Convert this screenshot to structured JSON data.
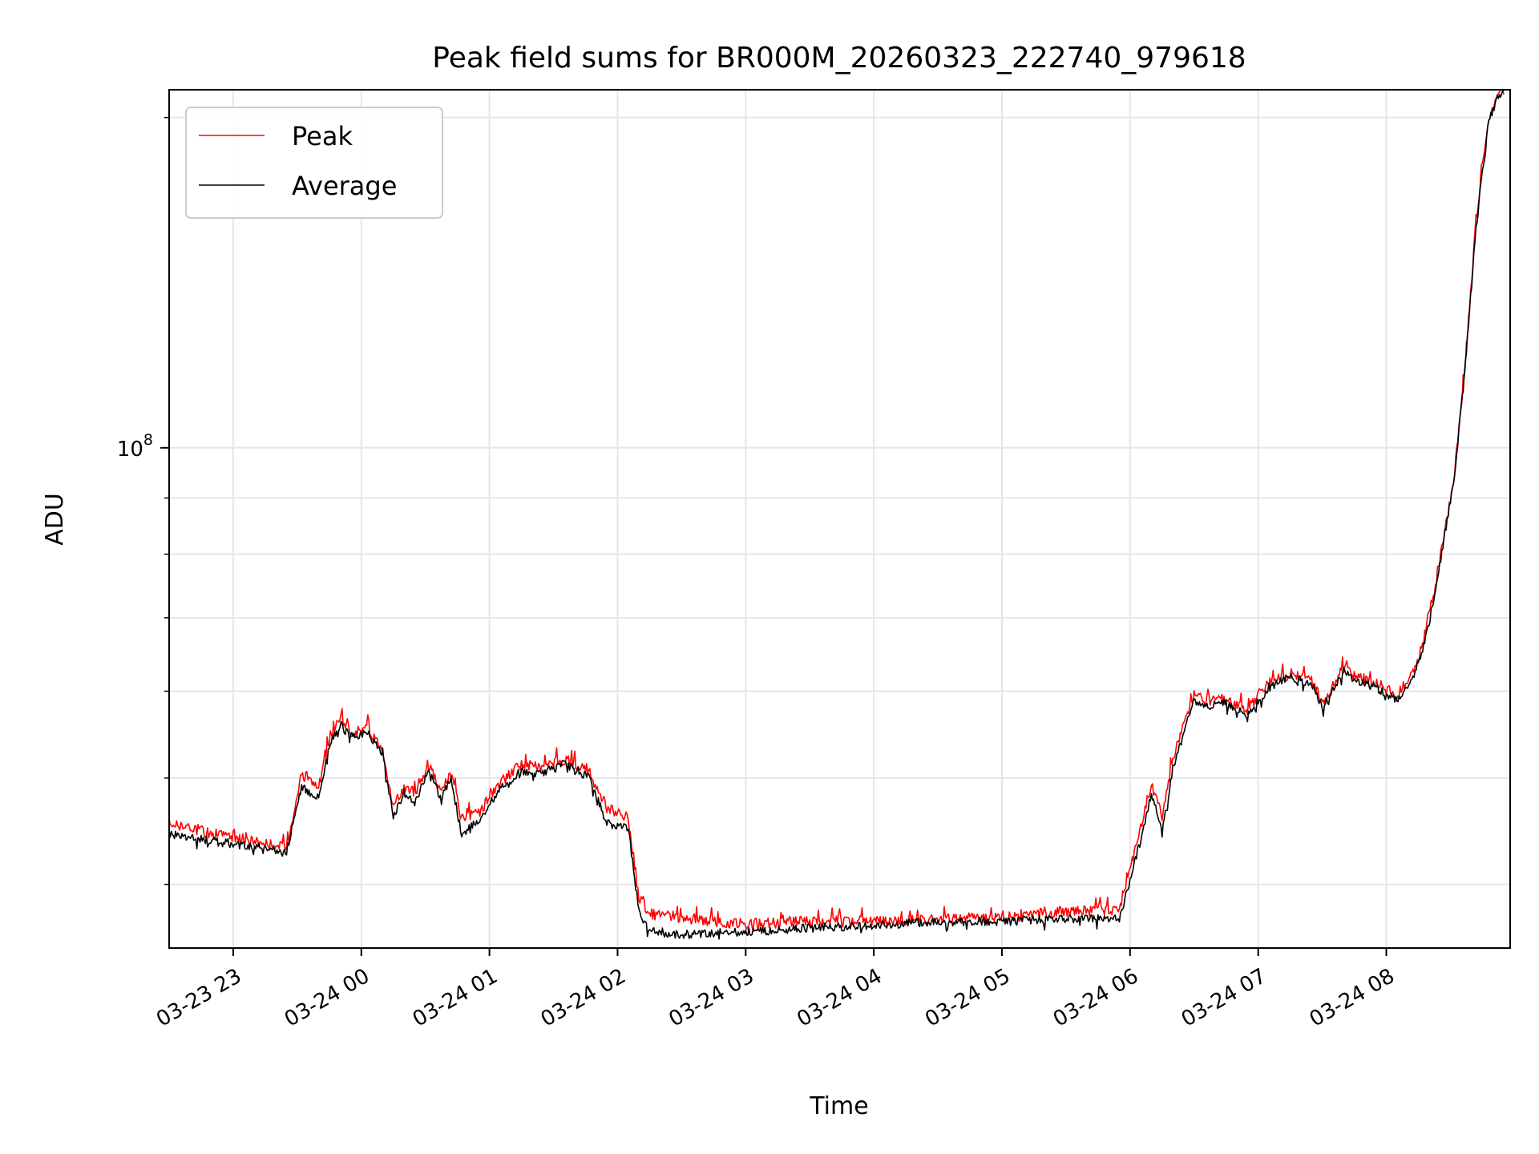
{
  "chart_data": {
    "type": "line",
    "title": "Peak field sums for BR000M_20260323_222740_979618",
    "xlabel": "Time",
    "ylabel": "ADU",
    "yscale": "log",
    "xlim": [
      "2026-03-23 22:30",
      "2026-03-24 08:58"
    ],
    "ylim": [
      35000000,
      212000000
    ],
    "x_ticks": [
      "03-23 23",
      "03-24 00",
      "03-24 01",
      "03-24 02",
      "03-24 03",
      "03-24 04",
      "03-24 05",
      "03-24 06",
      "03-24 07",
      "03-24 08"
    ],
    "y_major_tick": {
      "base": "10",
      "exponent": "8"
    },
    "grid": true,
    "legend_position": "upper-left",
    "series": [
      {
        "name": "Peak",
        "color": "#ff0000",
        "x": [
          "2026-03-23 22:30",
          "2026-03-23 22:50",
          "2026-03-23 23:10",
          "2026-03-23 23:25",
          "2026-03-23 23:32",
          "2026-03-23 23:40",
          "2026-03-23 23:45",
          "2026-03-23 23:50",
          "2026-03-23 23:55",
          "2026-03-24 00:03",
          "2026-03-24 00:10",
          "2026-03-24 00:15",
          "2026-03-24 00:20",
          "2026-03-24 00:25",
          "2026-03-24 00:32",
          "2026-03-24 00:37",
          "2026-03-24 00:42",
          "2026-03-24 00:47",
          "2026-03-24 00:55",
          "2026-03-24 01:05",
          "2026-03-24 01:15",
          "2026-03-24 01:25",
          "2026-03-24 01:35",
          "2026-03-24 01:40",
          "2026-03-24 01:47",
          "2026-03-24 01:55",
          "2026-03-24 02:05",
          "2026-03-24 02:10",
          "2026-03-24 02:15",
          "2026-03-24 02:30",
          "2026-03-24 03:00",
          "2026-03-24 03:30",
          "2026-03-24 04:00",
          "2026-03-24 04:30",
          "2026-03-24 05:00",
          "2026-03-24 05:30",
          "2026-03-24 05:55",
          "2026-03-24 06:05",
          "2026-03-24 06:10",
          "2026-03-24 06:15",
          "2026-03-24 06:20",
          "2026-03-24 06:30",
          "2026-03-24 06:35",
          "2026-03-24 06:45",
          "2026-03-24 06:55",
          "2026-03-24 07:05",
          "2026-03-24 07:15",
          "2026-03-24 07:25",
          "2026-03-24 07:30",
          "2026-03-24 07:40",
          "2026-03-24 07:45",
          "2026-03-24 07:55",
          "2026-03-24 08:05",
          "2026-03-24 08:12",
          "2026-03-24 08:17",
          "2026-03-24 08:22",
          "2026-03-24 08:27",
          "2026-03-24 08:32",
          "2026-03-24 08:37",
          "2026-03-24 08:42",
          "2026-03-24 08:45",
          "2026-03-24 08:48",
          "2026-03-24 08:52",
          "2026-03-24 08:55"
        ],
        "y": [
          45500000,
          44500000,
          43800000,
          43200000,
          50500000,
          49000000,
          54000000,
          56800000,
          55000000,
          55500000,
          53200000,
          47000000,
          49000000,
          48500000,
          51500000,
          48500000,
          50500000,
          45800000,
          46500000,
          49500000,
          51500000,
          51200000,
          52000000,
          51500000,
          50500000,
          47000000,
          46000000,
          39000000,
          37600000,
          37300000,
          36800000,
          37000000,
          37000000,
          37200000,
          37300000,
          37800000,
          38000000,
          45000000,
          49500000,
          46000000,
          52000000,
          59500000,
          58800000,
          59000000,
          57800000,
          61000000,
          62200000,
          61500000,
          58500000,
          63000000,
          62000000,
          61000000,
          59500000,
          62000000,
          66000000,
          73000000,
          83000000,
          95000000,
          120000000,
          160000000,
          180000000,
          200000000,
          210000000,
          212000000
        ]
      },
      {
        "name": "Average",
        "color": "#000000",
        "x": [
          "2026-03-23 22:30",
          "2026-03-23 22:50",
          "2026-03-23 23:10",
          "2026-03-23 23:25",
          "2026-03-23 23:32",
          "2026-03-23 23:40",
          "2026-03-23 23:45",
          "2026-03-23 23:50",
          "2026-03-23 23:55",
          "2026-03-24 00:03",
          "2026-03-24 00:10",
          "2026-03-24 00:15",
          "2026-03-24 00:20",
          "2026-03-24 00:25",
          "2026-03-24 00:32",
          "2026-03-24 00:37",
          "2026-03-24 00:42",
          "2026-03-24 00:47",
          "2026-03-24 00:55",
          "2026-03-24 01:05",
          "2026-03-24 01:15",
          "2026-03-24 01:25",
          "2026-03-24 01:35",
          "2026-03-24 01:40",
          "2026-03-24 01:47",
          "2026-03-24 01:55",
          "2026-03-24 02:05",
          "2026-03-24 02:10",
          "2026-03-24 02:15",
          "2026-03-24 02:30",
          "2026-03-24 03:00",
          "2026-03-24 03:30",
          "2026-03-24 04:00",
          "2026-03-24 04:30",
          "2026-03-24 05:00",
          "2026-03-24 05:30",
          "2026-03-24 05:55",
          "2026-03-24 06:05",
          "2026-03-24 06:10",
          "2026-03-24 06:15",
          "2026-03-24 06:20",
          "2026-03-24 06:30",
          "2026-03-24 06:35",
          "2026-03-24 06:45",
          "2026-03-24 06:55",
          "2026-03-24 07:05",
          "2026-03-24 07:15",
          "2026-03-24 07:25",
          "2026-03-24 07:30",
          "2026-03-24 07:40",
          "2026-03-24 07:45",
          "2026-03-24 07:55",
          "2026-03-24 08:05",
          "2026-03-24 08:12",
          "2026-03-24 08:17",
          "2026-03-24 08:22",
          "2026-03-24 08:27",
          "2026-03-24 08:32",
          "2026-03-24 08:37",
          "2026-03-24 08:42",
          "2026-03-24 08:45",
          "2026-03-24 08:48",
          "2026-03-24 08:52",
          "2026-03-24 08:55"
        ],
        "y": [
          44500000,
          43800000,
          43300000,
          42900000,
          49000000,
          48000000,
          53500000,
          56000000,
          54500000,
          55000000,
          52800000,
          46000000,
          48500000,
          47500000,
          51000000,
          48000000,
          49800000,
          44500000,
          45800000,
          48800000,
          50800000,
          50500000,
          51500000,
          51000000,
          50000000,
          45500000,
          45000000,
          37800000,
          36300000,
          36000000,
          36200000,
          36500000,
          36700000,
          37000000,
          37000000,
          37200000,
          37200000,
          44000000,
          48500000,
          44500000,
          51000000,
          59000000,
          58200000,
          58500000,
          57000000,
          60500000,
          61800000,
          61000000,
          57800000,
          62500000,
          61500000,
          60500000,
          58800000,
          61500000,
          65500000,
          72500000,
          82500000,
          94500000,
          119000000,
          158000000,
          178000000,
          198000000,
          209000000,
          212000000
        ]
      }
    ]
  }
}
